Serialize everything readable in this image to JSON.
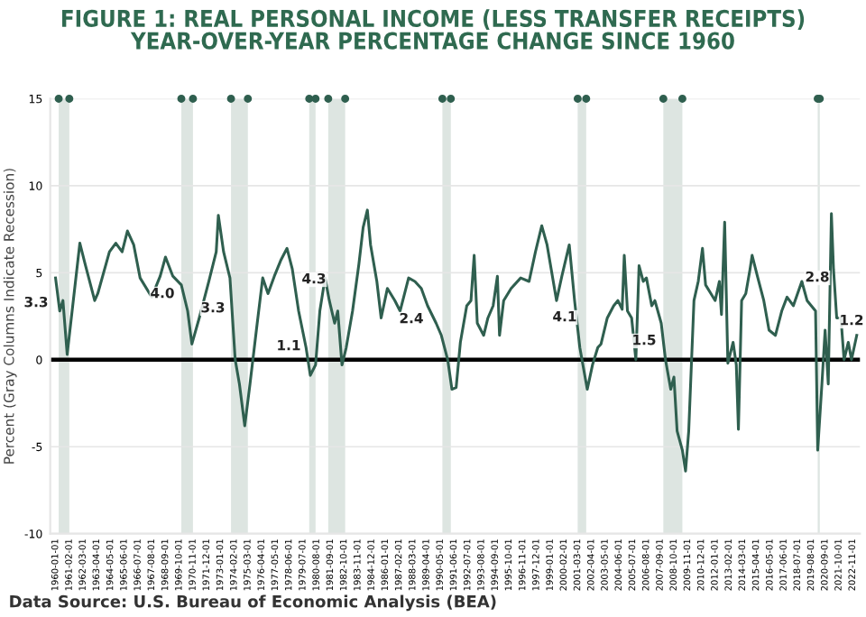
{
  "chart_data": {
    "type": "line",
    "title": "FIGURE 1: REAL PERSONAL INCOME (LESS TRANSFER RECEIPTS)\nYEAR-OVER-YEAR PERCENTAGE CHANGE SINCE 1960",
    "ylabel": "Percent (Gray Columns Indicate Recession)",
    "series": [
      {
        "color": "#2f5f4f",
        "x": [
          "1960-01",
          "1960-05",
          "1960-08",
          "1960-12",
          "1961-12",
          "1962-05",
          "1963-02",
          "1963-05",
          "1964-04",
          "1964-10",
          "1965-04",
          "1965-09",
          "1966-03",
          "1966-09",
          "1967-08",
          "1968-04",
          "1968-09",
          "1969-04",
          "1969-12",
          "1970-06",
          "1970-10",
          "1971-05",
          "1972-02",
          "1972-09",
          "1972-11",
          "1973-04",
          "1973-10",
          "1974-03",
          "1974-07",
          "1974-12",
          "1975-05",
          "1975-11",
          "1976-05",
          "1976-10",
          "1977-04",
          "1977-10",
          "1978-04",
          "1978-09",
          "1979-03",
          "1979-10",
          "1980-02",
          "1980-07",
          "1980-11",
          "1981-04",
          "1981-08",
          "1982-01",
          "1982-04",
          "1982-08",
          "1982-12",
          "1983-06",
          "1983-12",
          "1984-04",
          "1984-08",
          "1984-11",
          "1985-05",
          "1985-09",
          "1986-03",
          "1986-10",
          "1987-03",
          "1987-11",
          "1988-05",
          "1988-11",
          "1989-05",
          "1990-01",
          "1990-06",
          "1990-12",
          "1991-04",
          "1991-08",
          "1991-12",
          "1992-06",
          "1992-10",
          "1993-01",
          "1993-04",
          "1993-10",
          "1994-02",
          "1994-07",
          "1994-11",
          "1995-01",
          "1995-05",
          "1995-12",
          "1996-09",
          "1997-05",
          "1997-11",
          "1998-05",
          "1998-10",
          "1999-07",
          "1999-12",
          "2000-07",
          "2000-12",
          "2001-05",
          "2001-12",
          "2002-05",
          "2002-10",
          "2003-01",
          "2003-07",
          "2004-01",
          "2004-05",
          "2004-09",
          "2004-11",
          "2005-02",
          "2005-06",
          "2005-10",
          "2006-01",
          "2006-05",
          "2006-08",
          "2007-01",
          "2007-04",
          "2007-10",
          "2008-02",
          "2008-07",
          "2008-10",
          "2009-01",
          "2009-06",
          "2009-09",
          "2009-12",
          "2010-05",
          "2010-09",
          "2011-01",
          "2011-04",
          "2011-09",
          "2012-01",
          "2012-05",
          "2012-07",
          "2012-10",
          "2013-01",
          "2013-06",
          "2013-09",
          "2013-11",
          "2014-02",
          "2014-06",
          "2014-10",
          "2014-12",
          "2015-05",
          "2015-11",
          "2016-04",
          "2016-10",
          "2017-04",
          "2017-09",
          "2018-03",
          "2018-07",
          "2018-11",
          "2019-04",
          "2019-08",
          "2019-12",
          "2020-02",
          "2020-06",
          "2020-09",
          "2020-12",
          "2021-03",
          "2021-05",
          "2021-08",
          "2021-12",
          "2022-03",
          "2022-07",
          "2022-10",
          "2023-03"
        ],
        "values": [
          4.7,
          2.8,
          3.4,
          0.3,
          6.7,
          5.5,
          3.4,
          3.8,
          6.2,
          6.7,
          6.2,
          7.4,
          6.6,
          4.7,
          3.6,
          4.8,
          5.9,
          4.8,
          4.3,
          2.8,
          0.9,
          2.4,
          4.5,
          6.2,
          8.3,
          6.2,
          4.7,
          0,
          -1.4,
          -3.8,
          -1.4,
          1.7,
          4.7,
          3.8,
          4.8,
          5.7,
          6.4,
          5.2,
          2.8,
          0.7,
          -0.9,
          -0.3,
          2.8,
          4.7,
          3.4,
          2.1,
          2.8,
          -0.3,
          0.7,
          2.8,
          5.5,
          7.6,
          8.6,
          6.6,
          4.5,
          2.4,
          4.1,
          3.4,
          2.8,
          4.7,
          4.5,
          4.1,
          3.1,
          2.1,
          1.4,
          0,
          -1.7,
          -1.6,
          1.0,
          3.1,
          3.4,
          6.0,
          2.1,
          1.4,
          2.4,
          3.1,
          4.8,
          1.4,
          3.4,
          4.1,
          4.7,
          4.5,
          6.2,
          7.7,
          6.6,
          3.4,
          4.8,
          6.6,
          3.4,
          0.7,
          -1.7,
          -0.3,
          0.7,
          0.9,
          2.4,
          3.1,
          3.4,
          2.9,
          6.0,
          2.8,
          2.4,
          0,
          5.4,
          4.5,
          4.7,
          3.1,
          3.4,
          2.1,
          0,
          -1.7,
          -1.0,
          -4.1,
          -5.2,
          -6.4,
          -4.1,
          3.4,
          4.5,
          6.4,
          4.3,
          3.8,
          3.4,
          4.5,
          2.6,
          7.9,
          -0.2,
          1.0,
          -0.3,
          -4.0,
          3.4,
          3.8,
          5.2,
          6.0,
          4.8,
          3.4,
          1.7,
          1.4,
          2.8,
          3.6,
          3.1,
          3.8,
          4.5,
          3.4,
          3.1,
          2.8,
          -5.2,
          -1.4,
          1.7,
          -1.4,
          8.4,
          5.2,
          2.4,
          2.4,
          0,
          1.0,
          0,
          1.4
        ]
      }
    ],
    "ylim": [
      -10,
      15
    ],
    "yticks": [
      -10,
      -5,
      0,
      5,
      10,
      15
    ],
    "xlim": [
      "1959-08",
      "2023-06"
    ],
    "xticks": [
      {
        "value": "1960-01-01",
        "label": "1960-01-01"
      },
      {
        "value": "1961-02-01",
        "label": "1961-02-01"
      },
      {
        "value": "1962-03-01",
        "label": "1962-03-01"
      },
      {
        "value": "1963-04-01",
        "label": "1963-04-01"
      },
      {
        "value": "1964-05-01",
        "label": "1964-05-01"
      },
      {
        "value": "1965-06-01",
        "label": "1965-06-01"
      },
      {
        "value": "1966-07-01",
        "label": "1966-07-01"
      },
      {
        "value": "1967-08-01",
        "label": "1967-08-01"
      },
      {
        "value": "1968-09-01",
        "label": "1968-09-01"
      },
      {
        "value": "1969-10-01",
        "label": "1969-10-01"
      },
      {
        "value": "1970-11-01",
        "label": "1970-11-01"
      },
      {
        "value": "1971-12-01",
        "label": "1971-12-01"
      },
      {
        "value": "1973-01-01",
        "label": "1973-01-01"
      },
      {
        "value": "1974-02-01",
        "label": "1974-02-01"
      },
      {
        "value": "1975-03-01",
        "label": "1975-03-01"
      },
      {
        "value": "1976-04-01",
        "label": "1976-04-01"
      },
      {
        "value": "1977-05-01",
        "label": "1977-05-01"
      },
      {
        "value": "1978-06-01",
        "label": "1978-06-01"
      },
      {
        "value": "1979-07-01",
        "label": "1979-07-01"
      },
      {
        "value": "1980-08-01",
        "label": "1980-08-01"
      },
      {
        "value": "1981-09-01",
        "label": "1981-09-01"
      },
      {
        "value": "1982-10-01",
        "label": "1982-10-01"
      },
      {
        "value": "1983-11-01",
        "label": "1983-11-01"
      },
      {
        "value": "1984-12-01",
        "label": "1984-12-01"
      },
      {
        "value": "1986-01-01",
        "label": "1986-01-01"
      },
      {
        "value": "1987-02-01",
        "label": "1987-02-01"
      },
      {
        "value": "1988-03-01",
        "label": "1988-03-01"
      },
      {
        "value": "1989-04-01",
        "label": "1989-04-01"
      },
      {
        "value": "1990-05-01",
        "label": "1990-05-01"
      },
      {
        "value": "1991-06-01",
        "label": "1991-06-01"
      },
      {
        "value": "1992-07-01",
        "label": "1992-07-01"
      },
      {
        "value": "1993-08-01",
        "label": "1993-08-01"
      },
      {
        "value": "1994-09-01",
        "label": "1994-09-01"
      },
      {
        "value": "1995-10-01",
        "label": "1995-10-01"
      },
      {
        "value": "1996-11-01",
        "label": "1996-11-01"
      },
      {
        "value": "1997-12-01",
        "label": "1997-12-01"
      },
      {
        "value": "1999-01-01",
        "label": "1999-01-01"
      },
      {
        "value": "2000-02-01",
        "label": "2000-02-01"
      },
      {
        "value": "2001-03-01",
        "label": "2001-03-01"
      },
      {
        "value": "2002-04-01",
        "label": "2002-04-01"
      },
      {
        "value": "2003-05-01",
        "label": "2003-05-01"
      },
      {
        "value": "2004-06-01",
        "label": "2004-06-01"
      },
      {
        "value": "2005-07-01",
        "label": "2005-07-01"
      },
      {
        "value": "2006-08-01",
        "label": "2006-08-01"
      },
      {
        "value": "2007-09-01",
        "label": "2007-09-01"
      },
      {
        "value": "2008-10-01",
        "label": "2008-10-01"
      },
      {
        "value": "2009-11-01",
        "label": "2009-11-01"
      },
      {
        "value": "2010-12-01",
        "label": "2010-12-01"
      },
      {
        "value": "2012-01-01",
        "label": "2012-01-01"
      },
      {
        "value": "2013-02-01",
        "label": "2013-02-01"
      },
      {
        "value": "2014-03-01",
        "label": "2014-03-01"
      },
      {
        "value": "2015-04-01",
        "label": "2015-04-01"
      },
      {
        "value": "2016-05-01",
        "label": "2016-05-01"
      },
      {
        "value": "2017-06-01",
        "label": "2017-06-01"
      },
      {
        "value": "2018-07-01",
        "label": "2018-07-01"
      },
      {
        "value": "2019-08-01",
        "label": "2019-08-01"
      },
      {
        "value": "2020-09-01",
        "label": "2020-09-01"
      },
      {
        "value": "2021-10-01",
        "label": "2021-10-01"
      },
      {
        "value": "2022-11-01",
        "label": "2022-11-01"
      }
    ],
    "bands": [
      {
        "axis": "x",
        "from": "1960-04",
        "to": "1961-02",
        "color": "#dde5e1"
      },
      {
        "axis": "x",
        "from": "1969-12",
        "to": "1970-11",
        "color": "#dde5e1"
      },
      {
        "axis": "x",
        "from": "1973-11",
        "to": "1975-03",
        "color": "#dde5e1"
      },
      {
        "axis": "x",
        "from": "1980-01",
        "to": "1980-07",
        "color": "#dde5e1"
      },
      {
        "axis": "x",
        "from": "1981-07",
        "to": "1982-11",
        "color": "#dde5e1"
      },
      {
        "axis": "x",
        "from": "1990-07",
        "to": "1991-03",
        "color": "#dde5e1"
      },
      {
        "axis": "x",
        "from": "2001-03",
        "to": "2001-11",
        "color": "#dde5e1"
      },
      {
        "axis": "x",
        "from": "2007-12",
        "to": "2009-06",
        "color": "#dde5e1"
      },
      {
        "axis": "x",
        "from": "2020-02",
        "to": "2020-04",
        "color": "#dde5e1"
      }
    ],
    "ref_lines": [
      {
        "axis": "y",
        "value": 0,
        "color": "#000000"
      }
    ],
    "annotations": [
      "3.3",
      "4.0",
      "3.3",
      "1.1",
      "4.3",
      "2.4",
      "4.1",
      "1.5",
      "2.8",
      "1.2",
      "Data Source: U.S. Bureau of Economic Analysis (BEA)"
    ],
    "grid": "y"
  }
}
